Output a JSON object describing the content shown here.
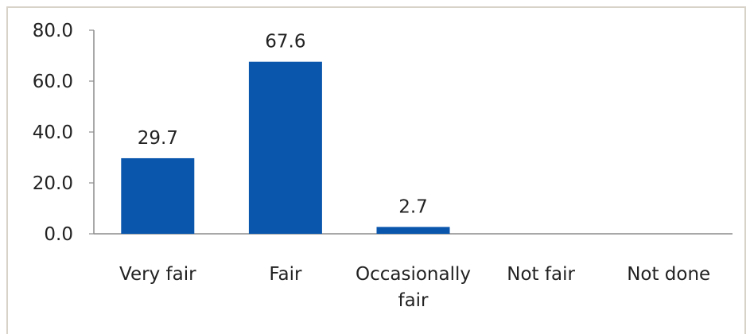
{
  "chart_data": {
    "type": "bar",
    "categories": [
      "Very fair",
      "Fair",
      "Occasionally fair",
      "Not fair",
      "Not done"
    ],
    "category_lines": [
      [
        "Very fair"
      ],
      [
        "Fair"
      ],
      [
        "Occasionally",
        "fair"
      ],
      [
        "Not fair"
      ],
      [
        "Not done"
      ]
    ],
    "values": [
      29.7,
      67.6,
      2.7,
      null,
      null
    ],
    "data_labels": [
      "29.7",
      "67.6",
      "2.7",
      "",
      ""
    ],
    "ylim": [
      0,
      80
    ],
    "yticks": [
      0,
      20,
      40,
      60,
      80
    ],
    "ytick_labels": [
      "0.0",
      "20.0",
      "40.0",
      "60.0",
      "80.0"
    ],
    "title": "",
    "xlabel": "",
    "ylabel": "",
    "grid": false,
    "legend": "none",
    "bar_color": "#0a56ad"
  }
}
